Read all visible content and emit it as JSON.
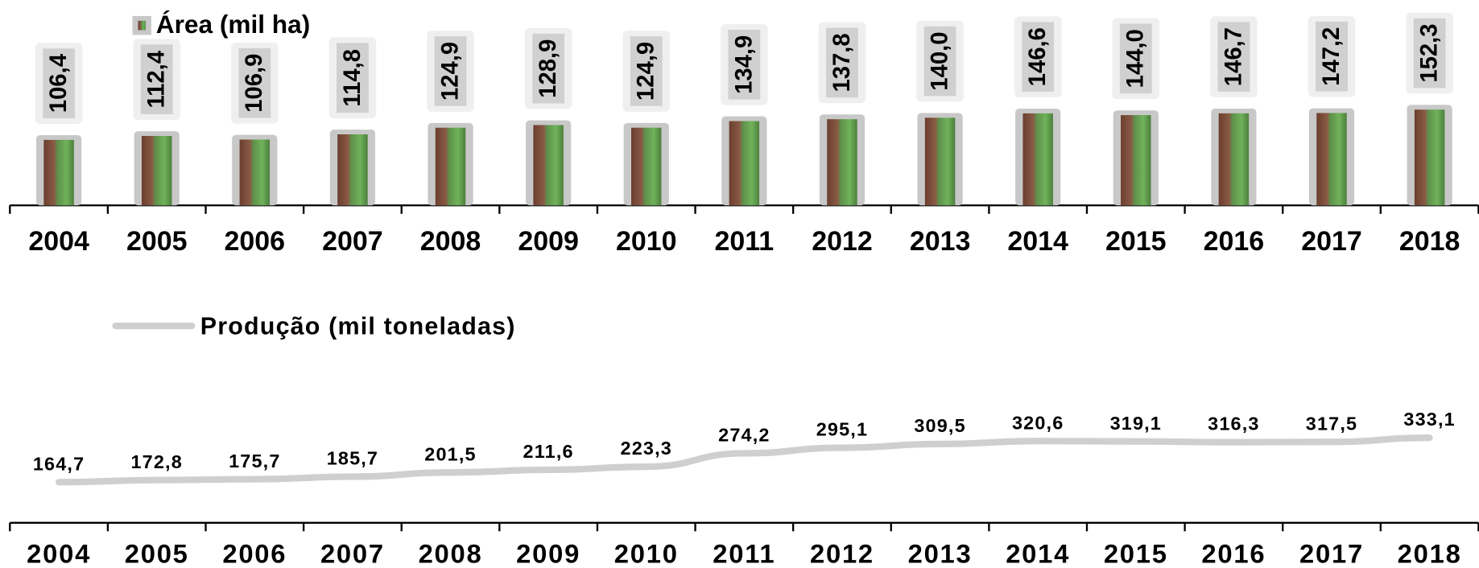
{
  "chart_data": [
    {
      "type": "bar",
      "categories": [
        "2004",
        "2005",
        "2006",
        "2007",
        "2008",
        "2009",
        "2010",
        "2011",
        "2012",
        "2013",
        "2014",
        "2015",
        "2016",
        "2017",
        "2018"
      ],
      "series": [
        {
          "name": "Área (mil ha)",
          "color": "#c8c8c8",
          "values": [
            106.4,
            112.4,
            106.9,
            114.8,
            124.9,
            128.9,
            124.9,
            134.9,
            137.8,
            140.0,
            146.6,
            144.0,
            146.7,
            147.2,
            152.3
          ],
          "value_labels": [
            "106,4",
            "112,4",
            "106,9",
            "114,8",
            "124,9",
            "128,9",
            "124,9",
            "134,9",
            "137,8",
            "140,0",
            "146,6",
            "144,0",
            "146,7",
            "147,2",
            "152,3"
          ]
        }
      ]
    },
    {
      "type": "line",
      "categories": [
        "2004",
        "2005",
        "2006",
        "2007",
        "2008",
        "2009",
        "2010",
        "2011",
        "2012",
        "2013",
        "2014",
        "2015",
        "2016",
        "2017",
        "2018"
      ],
      "series": [
        {
          "name": "Produção (mil toneladas)",
          "color": "#cfcfcf",
          "values": [
            164.7,
            172.8,
            175.7,
            185.7,
            201.5,
            211.6,
            223.3,
            274.2,
            295.1,
            309.5,
            320.6,
            319.1,
            316.3,
            317.5,
            333.1
          ],
          "value_labels": [
            "164,7",
            "172,8",
            "175,7",
            "185,7",
            "201,5",
            "211,6",
            "223,3",
            "274,2",
            "295,1",
            "309,5",
            "320,6",
            "319,1",
            "316,3",
            "317,5",
            "333,1"
          ]
        }
      ]
    }
  ]
}
